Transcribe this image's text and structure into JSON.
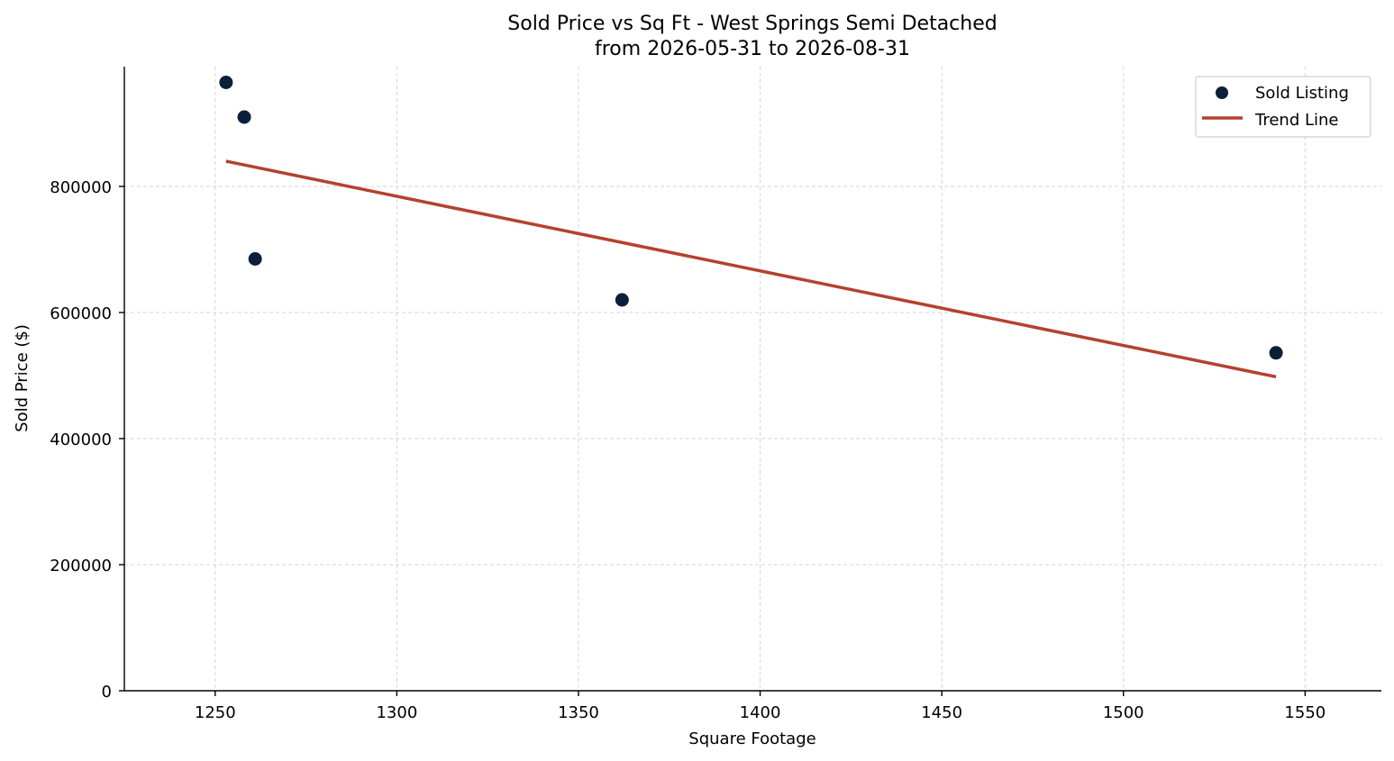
{
  "chart_data": {
    "type": "scatter",
    "title_line1": "Sold Price vs Sq Ft - West Springs Semi Detached",
    "title_line2": "from 2026-05-31 to 2026-08-31",
    "xlabel": "Square Footage",
    "ylabel": "Sold Price ($)",
    "xlim": [
      1225,
      1571
    ],
    "ylim": [
      0,
      990000
    ],
    "x_ticks": [
      1250,
      1300,
      1350,
      1400,
      1450,
      1500,
      1550
    ],
    "y_ticks": [
      0,
      200000,
      400000,
      600000,
      800000
    ],
    "grid": true,
    "legend_position": "top-right",
    "series": [
      {
        "name": "Sold Listing",
        "kind": "scatter",
        "color": "#0b1f3a",
        "points": [
          {
            "x": 1253,
            "y": 965000
          },
          {
            "x": 1258,
            "y": 910000
          },
          {
            "x": 1261,
            "y": 685000
          },
          {
            "x": 1362,
            "y": 620000
          },
          {
            "x": 1542,
            "y": 536000
          }
        ]
      },
      {
        "name": "Trend Line",
        "kind": "line",
        "color": "#b5412f",
        "points": [
          {
            "x": 1253,
            "y": 840000
          },
          {
            "x": 1542,
            "y": 498000
          }
        ]
      }
    ]
  }
}
